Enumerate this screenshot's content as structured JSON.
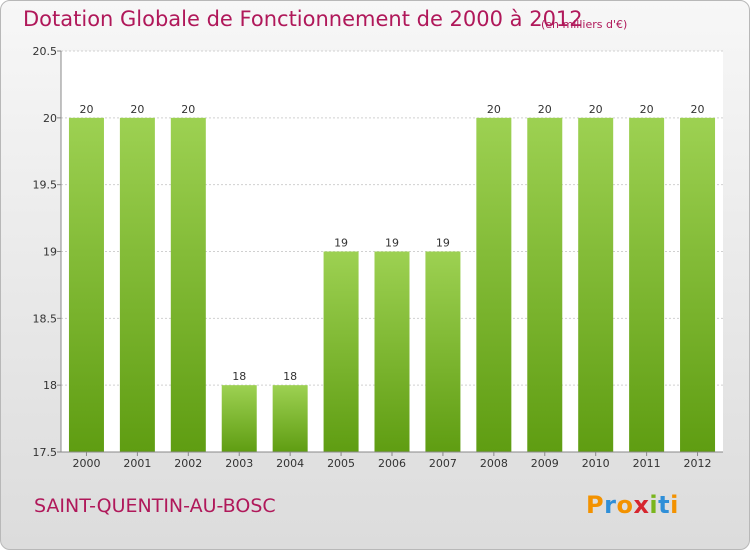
{
  "chart_data": {
    "type": "bar",
    "title": "Dotation Globale de Fonctionnement de 2000 à 2012",
    "unit": "(en milliers d'€)",
    "categories": [
      "2000",
      "2001",
      "2002",
      "2003",
      "2004",
      "2005",
      "2006",
      "2007",
      "2008",
      "2009",
      "2010",
      "2011",
      "2012"
    ],
    "values": [
      20,
      20,
      20,
      18,
      18,
      19,
      19,
      19,
      20,
      20,
      20,
      20,
      20
    ],
    "data_labels": [
      "20",
      "20",
      "20",
      "18",
      "18",
      "19",
      "19",
      "19",
      "20",
      "20",
      "20",
      "20",
      "20"
    ],
    "yticks": [
      17.5,
      18,
      18.5,
      19,
      19.5,
      20,
      20.5
    ],
    "ytick_labels": [
      "17.5",
      "18",
      "18.5",
      "19",
      "19.5",
      "20",
      "20.5"
    ],
    "ylim": [
      17.5,
      20.5
    ],
    "xlabel": "",
    "ylabel": "",
    "grid": true
  },
  "commune": "SAINT-QUENTIN-AU-BOSC",
  "brand": {
    "text": "Proxiti",
    "letters": [
      {
        "ch": "P",
        "color": "#f39200"
      },
      {
        "ch": "r",
        "color": "#2f8fd8"
      },
      {
        "ch": "o",
        "color": "#f39200"
      },
      {
        "ch": "x",
        "color": "#d6262e"
      },
      {
        "ch": "i",
        "color": "#7ab51d"
      },
      {
        "ch": "t",
        "color": "#2f8fd8"
      },
      {
        "ch": "i",
        "color": "#f39200"
      }
    ]
  },
  "colors": {
    "bar_top": "#9dd152",
    "bar_bottom": "#5f9d12",
    "title": "#b0185a",
    "grid": "#d0d0d0"
  }
}
